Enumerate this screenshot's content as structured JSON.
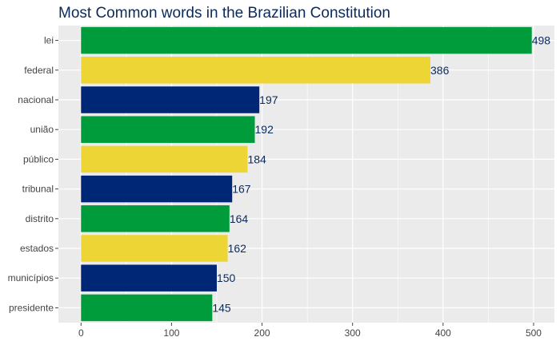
{
  "chart_data": {
    "type": "bar",
    "orientation": "horizontal",
    "title": "Most Common words in the Brazilian Constitution",
    "categories": [
      "lei",
      "federal",
      "nacional",
      "união",
      "público",
      "tribunal",
      "distrito",
      "estados",
      "municípios",
      "presidente"
    ],
    "values": [
      498,
      386,
      197,
      192,
      184,
      167,
      164,
      162,
      150,
      145
    ],
    "bar_colors": [
      "#009c3b",
      "#ecd535",
      "#002776",
      "#009c3b",
      "#ecd535",
      "#002776",
      "#009c3b",
      "#ecd535",
      "#002776",
      "#009c3b"
    ],
    "x_ticks": [
      0,
      100,
      200,
      300,
      400,
      500
    ],
    "xlim": [
      -25,
      523
    ],
    "xlabel": "",
    "ylabel": "",
    "grid": true,
    "legend": "none"
  },
  "colors": {
    "panel_background": "#ebebeb",
    "gridline": "#ffffff",
    "title": "#0b2a5b",
    "value_label": "#0b2a5b"
  }
}
